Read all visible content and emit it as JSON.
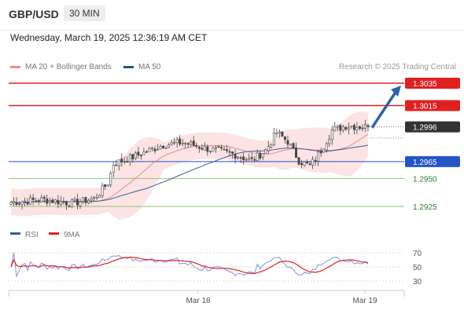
{
  "header": {
    "symbol": "GBP/USD",
    "timeframe": "30 MIN",
    "datetime": "Wednesday, March 19, 2025 12:36:19 AM CET"
  },
  "legend": {
    "ma20": "MA 20 + Bollinger Bands",
    "ma50": "MA 50",
    "credit": "Research © 2025 Trading Central"
  },
  "colors": {
    "bullish": "#26a69a",
    "bearish": "#ef5350",
    "ma20": "#e68a8a",
    "ma50": "#3a5a9c",
    "bands": "#fbd5d5",
    "resistance": "#e02020",
    "pivot": "#2455c7",
    "support": "#8ec27a",
    "arrow": "#2d62a7",
    "rsi": "#7d95d6",
    "rsi_ma": "#e02020"
  },
  "chart_data": [
    {
      "type": "candlestick",
      "ylim": [
        1.2905,
        1.3045
      ],
      "x_labels": [
        "Mar 18",
        "Mar 19"
      ],
      "levels": [
        {
          "value": 1.3035,
          "label": "1.3035",
          "kind": "resistance"
        },
        {
          "value": 1.3015,
          "label": "1.3015",
          "kind": "resistance"
        },
        {
          "value": 1.2996,
          "label": "1.2996",
          "kind": "last"
        },
        {
          "value": 1.2965,
          "label": "1.2965",
          "kind": "pivot"
        },
        {
          "value": 1.295,
          "label": "1.2950",
          "kind": "support"
        },
        {
          "value": 1.2925,
          "label": "1.2925",
          "kind": "support"
        }
      ],
      "forecast": {
        "from": 1.2996,
        "to": 1.3035,
        "direction": "up"
      },
      "series": [
        {
          "name": "MA 20 + Bollinger Bands",
          "type": "line"
        },
        {
          "name": "MA 50",
          "type": "line"
        }
      ]
    },
    {
      "type": "line",
      "title": "RSI",
      "series_names": [
        "RSI",
        "9MA"
      ],
      "ylim": [
        20,
        80
      ],
      "ticks": [
        70,
        50,
        30
      ],
      "last_rsi": 54,
      "last_ma": 56
    }
  ]
}
